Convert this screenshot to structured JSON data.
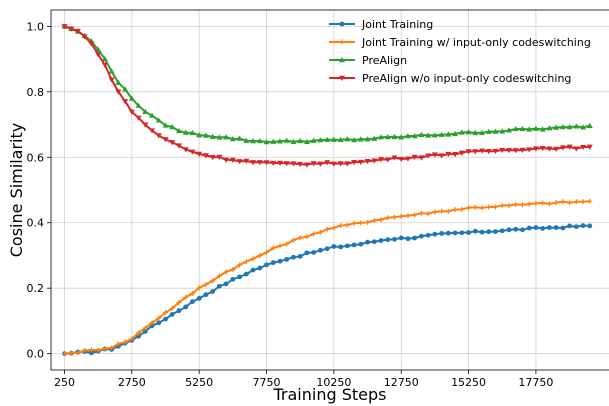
{
  "chart_data": {
    "type": "line",
    "title": "",
    "xlabel": "Training Steps",
    "ylabel": "Cosine Similarity",
    "xlim": [
      -250,
      20500
    ],
    "ylim": [
      -0.05,
      1.05
    ],
    "x_ticks": [
      250,
      2750,
      5250,
      7750,
      10250,
      12750,
      15250,
      17750
    ],
    "y_ticks": [
      0.0,
      0.2,
      0.4,
      0.6,
      0.8,
      1.0
    ],
    "x_tick_labels": [
      "250",
      "2750",
      "5250",
      "7750",
      "10250",
      "12750",
      "15250",
      "17750"
    ],
    "y_tick_labels": [
      "0.0",
      "0.2",
      "0.4",
      "0.6",
      "0.8",
      "1.0"
    ],
    "grid": true,
    "legend_position": "top-right",
    "x_step": 250,
    "series": [
      {
        "name": "Joint Training",
        "color": "#1f77b4",
        "marker": "circle",
        "keypoints": [
          [
            250,
            0.0
          ],
          [
            1250,
            0.005
          ],
          [
            2000,
            0.015
          ],
          [
            2750,
            0.04
          ],
          [
            3250,
            0.07
          ],
          [
            4250,
            0.12
          ],
          [
            5250,
            0.17
          ],
          [
            6250,
            0.215
          ],
          [
            7250,
            0.255
          ],
          [
            8250,
            0.285
          ],
          [
            9250,
            0.305
          ],
          [
            10250,
            0.325
          ],
          [
            11250,
            0.335
          ],
          [
            12250,
            0.35
          ],
          [
            13250,
            0.355
          ],
          [
            14250,
            0.365
          ],
          [
            15250,
            0.37
          ],
          [
            16250,
            0.375
          ],
          [
            17250,
            0.38
          ],
          [
            18250,
            0.385
          ],
          [
            19750,
            0.39
          ]
        ]
      },
      {
        "name": "Joint Training w/ input-only codeswitching",
        "color": "#ff7f0e",
        "marker": "plus",
        "keypoints": [
          [
            250,
            0.0
          ],
          [
            1250,
            0.01
          ],
          [
            2000,
            0.02
          ],
          [
            2750,
            0.045
          ],
          [
            3250,
            0.08
          ],
          [
            4250,
            0.14
          ],
          [
            5250,
            0.2
          ],
          [
            6250,
            0.25
          ],
          [
            7250,
            0.29
          ],
          [
            8250,
            0.33
          ],
          [
            9250,
            0.36
          ],
          [
            10250,
            0.385
          ],
          [
            11250,
            0.4
          ],
          [
            12250,
            0.415
          ],
          [
            13250,
            0.425
          ],
          [
            14250,
            0.435
          ],
          [
            15250,
            0.445
          ],
          [
            16250,
            0.45
          ],
          [
            17250,
            0.455
          ],
          [
            18250,
            0.46
          ],
          [
            19750,
            0.465
          ]
        ]
      },
      {
        "name": "PreAlign",
        "color": "#2ca02c",
        "marker": "triangle-up",
        "keypoints": [
          [
            250,
            1.0
          ],
          [
            750,
            0.985
          ],
          [
            1250,
            0.955
          ],
          [
            1750,
            0.9
          ],
          [
            2250,
            0.83
          ],
          [
            2750,
            0.78
          ],
          [
            3250,
            0.74
          ],
          [
            3750,
            0.71
          ],
          [
            4250,
            0.69
          ],
          [
            4750,
            0.675
          ],
          [
            5250,
            0.67
          ],
          [
            6250,
            0.66
          ],
          [
            7250,
            0.65
          ],
          [
            8250,
            0.648
          ],
          [
            9250,
            0.65
          ],
          [
            10250,
            0.652
          ],
          [
            11250,
            0.655
          ],
          [
            12250,
            0.66
          ],
          [
            13250,
            0.665
          ],
          [
            14250,
            0.67
          ],
          [
            15250,
            0.675
          ],
          [
            16250,
            0.68
          ],
          [
            17250,
            0.685
          ],
          [
            18250,
            0.688
          ],
          [
            19750,
            0.695
          ]
        ]
      },
      {
        "name": "PreAlign w/o input-only codeswitching",
        "color": "#d62728",
        "marker": "triangle-down",
        "keypoints": [
          [
            250,
            1.0
          ],
          [
            750,
            0.985
          ],
          [
            1250,
            0.95
          ],
          [
            1750,
            0.88
          ],
          [
            2250,
            0.8
          ],
          [
            2750,
            0.74
          ],
          [
            3250,
            0.7
          ],
          [
            3750,
            0.665
          ],
          [
            4250,
            0.645
          ],
          [
            4750,
            0.625
          ],
          [
            5250,
            0.61
          ],
          [
            6250,
            0.595
          ],
          [
            7250,
            0.585
          ],
          [
            8250,
            0.58
          ],
          [
            9250,
            0.58
          ],
          [
            10250,
            0.582
          ],
          [
            11250,
            0.585
          ],
          [
            12250,
            0.595
          ],
          [
            13250,
            0.6
          ],
          [
            14250,
            0.608
          ],
          [
            15250,
            0.615
          ],
          [
            16250,
            0.62
          ],
          [
            17250,
            0.625
          ],
          [
            18250,
            0.628
          ],
          [
            19750,
            0.63
          ]
        ]
      }
    ]
  }
}
